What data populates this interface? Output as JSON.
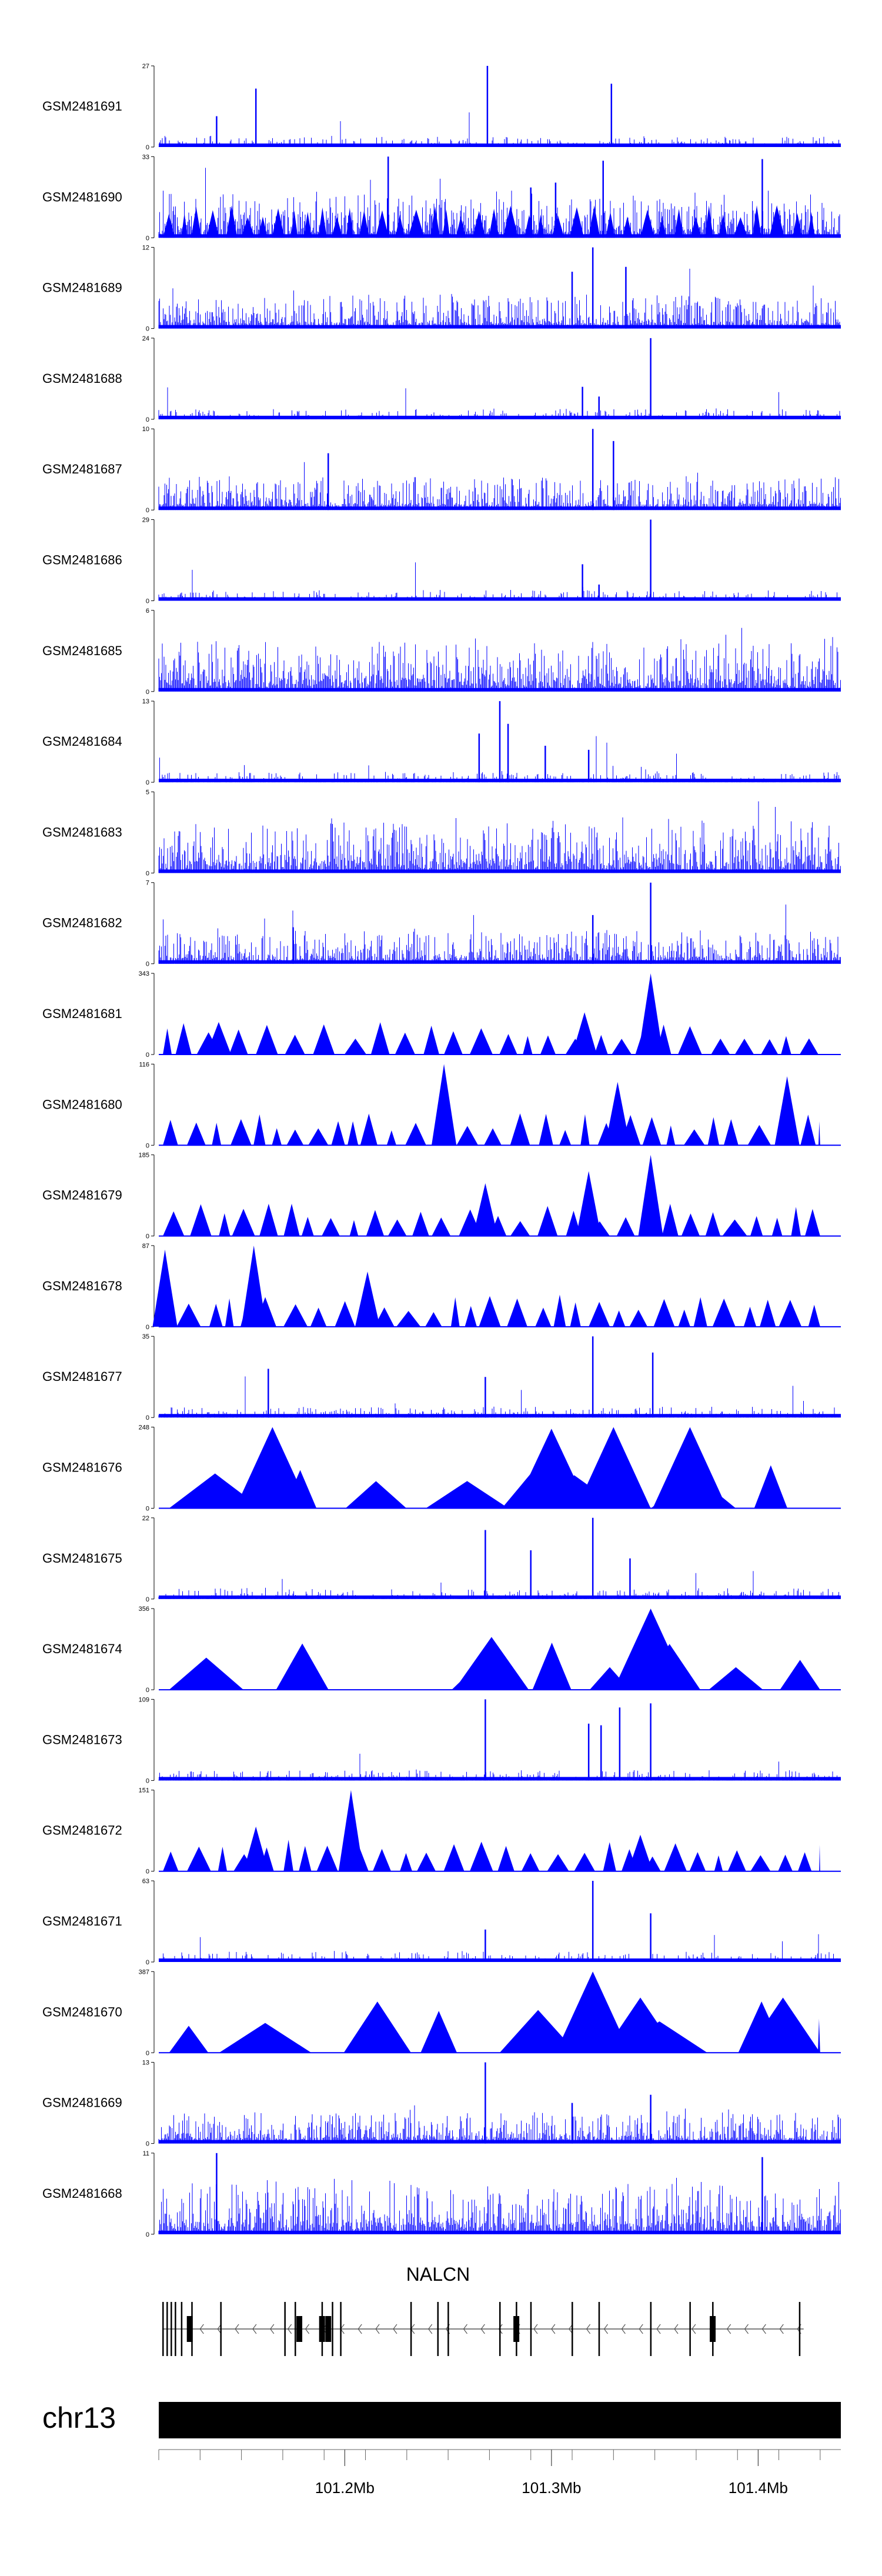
{
  "colors": {
    "signal": "#0000ff",
    "axis": "#000000",
    "background": "#ffffff"
  },
  "chart_data": {
    "type": "area",
    "title": "",
    "chromosome": "chr13",
    "xlim": [
      101.11,
      101.44
    ],
    "xlabel": "",
    "x_ticks": [
      {
        "value": 101.2,
        "label": "101.2Mb"
      },
      {
        "value": 101.3,
        "label": "101.3Mb"
      },
      {
        "value": 101.4,
        "label": "101.4Mb"
      }
    ],
    "gene": {
      "name": "NALCN",
      "strand": "-",
      "exons": [
        101.112,
        101.114,
        101.116,
        101.118,
        101.121,
        101.126,
        101.14,
        101.171,
        101.176,
        101.189,
        101.194,
        101.198,
        101.232,
        101.245,
        101.25,
        101.275,
        101.283,
        101.29,
        101.31,
        101.323,
        101.348,
        101.367,
        101.378,
        101.42
      ],
      "thick_exons": [
        101.125,
        101.178,
        101.189,
        101.192,
        101.283,
        101.378
      ]
    },
    "tracks": [
      {
        "name": "GSM2481691",
        "ymax": "27",
        "style": "sparse-spikes",
        "peaks": [
          {
            "x": 101.138,
            "h": 0.38
          },
          {
            "x": 101.157,
            "h": 0.72
          },
          {
            "x": 101.269,
            "h": 1.0
          },
          {
            "x": 101.329,
            "h": 0.78
          }
        ]
      },
      {
        "name": "GSM2481690",
        "ymax": "33",
        "style": "dense-triangles",
        "peaks": [
          {
            "x": 101.221,
            "h": 1.0
          },
          {
            "x": 101.29,
            "h": 0.62
          },
          {
            "x": 101.302,
            "h": 0.68
          },
          {
            "x": 101.325,
            "h": 0.95
          },
          {
            "x": 101.402,
            "h": 0.97
          }
        ]
      },
      {
        "name": "GSM2481689",
        "ymax": "12",
        "style": "dense",
        "peaks": [
          {
            "x": 101.32,
            "h": 1.0
          },
          {
            "x": 101.31,
            "h": 0.7
          },
          {
            "x": 101.336,
            "h": 0.76
          }
        ]
      },
      {
        "name": "GSM2481688",
        "ymax": "24",
        "style": "sparse-spikes",
        "peaks": [
          {
            "x": 101.315,
            "h": 0.4
          },
          {
            "x": 101.323,
            "h": 0.28
          },
          {
            "x": 101.348,
            "h": 1.0
          }
        ]
      },
      {
        "name": "GSM2481687",
        "ymax": "10",
        "style": "dense",
        "peaks": [
          {
            "x": 101.32,
            "h": 1.0
          },
          {
            "x": 101.33,
            "h": 0.85
          },
          {
            "x": 101.192,
            "h": 0.7
          }
        ]
      },
      {
        "name": "GSM2481686",
        "ymax": "29",
        "style": "sparse-spikes",
        "peaks": [
          {
            "x": 101.315,
            "h": 0.45
          },
          {
            "x": 101.348,
            "h": 1.0
          },
          {
            "x": 101.323,
            "h": 0.2
          }
        ]
      },
      {
        "name": "GSM2481685",
        "ymax": "6",
        "style": "dense-uniform",
        "peaks": []
      },
      {
        "name": "GSM2481684",
        "ymax": "13",
        "style": "sparse-spikes",
        "peaks": [
          {
            "x": 101.265,
            "h": 0.6
          },
          {
            "x": 101.275,
            "h": 1.0
          },
          {
            "x": 101.279,
            "h": 0.72
          },
          {
            "x": 101.297,
            "h": 0.45
          },
          {
            "x": 101.318,
            "h": 0.4
          }
        ]
      },
      {
        "name": "GSM2481683",
        "ymax": "5",
        "style": "dense-uniform",
        "peaks": []
      },
      {
        "name": "GSM2481682",
        "ymax": "7",
        "style": "dense",
        "peaks": [
          {
            "x": 101.348,
            "h": 1.0
          },
          {
            "x": 101.32,
            "h": 0.6
          },
          {
            "x": 101.175,
            "h": 0.45
          }
        ]
      },
      {
        "name": "GSM2481681",
        "ymax": "343",
        "style": "triangles",
        "peaks": [
          {
            "x": 101.348,
            "h": 1.0
          },
          {
            "x": 101.316,
            "h": 0.52
          },
          {
            "x": 101.139,
            "h": 0.4
          }
        ]
      },
      {
        "name": "GSM2481680",
        "ymax": "116",
        "style": "triangles",
        "peaks": [
          {
            "x": 101.248,
            "h": 1.0
          },
          {
            "x": 101.332,
            "h": 0.78
          },
          {
            "x": 101.414,
            "h": 0.85
          }
        ]
      },
      {
        "name": "GSM2481679",
        "ymax": "185",
        "style": "triangles",
        "peaks": [
          {
            "x": 101.348,
            "h": 1.0
          },
          {
            "x": 101.318,
            "h": 0.8
          },
          {
            "x": 101.268,
            "h": 0.65
          }
        ]
      },
      {
        "name": "GSM2481678",
        "ymax": "87",
        "style": "triangles",
        "peaks": [
          {
            "x": 101.113,
            "h": 0.95
          },
          {
            "x": 101.156,
            "h": 1.0
          },
          {
            "x": 101.211,
            "h": 0.68
          }
        ]
      },
      {
        "name": "GSM2481677",
        "ymax": "35",
        "style": "sparse-spikes",
        "peaks": [
          {
            "x": 101.32,
            "h": 1.0
          },
          {
            "x": 101.349,
            "h": 0.8
          },
          {
            "x": 101.163,
            "h": 0.6
          },
          {
            "x": 101.268,
            "h": 0.5
          }
        ]
      },
      {
        "name": "GSM2481676",
        "ymax": "248",
        "style": "triangles-wide",
        "peaks": [
          {
            "x": 101.165,
            "h": 1.0
          },
          {
            "x": 101.294,
            "h": 0.55
          },
          {
            "x": 101.3,
            "h": 0.98
          },
          {
            "x": 101.33,
            "h": 1.0
          },
          {
            "x": 101.367,
            "h": 1.0
          }
        ]
      },
      {
        "name": "GSM2481675",
        "ymax": "22",
        "style": "sparse-spikes",
        "peaks": [
          {
            "x": 101.268,
            "h": 0.85
          },
          {
            "x": 101.32,
            "h": 1.0
          },
          {
            "x": 101.29,
            "h": 0.6
          },
          {
            "x": 101.338,
            "h": 0.5
          }
        ]
      },
      {
        "name": "GSM2481674",
        "ymax": "356",
        "style": "triangles-wide",
        "peaks": [
          {
            "x": 101.271,
            "h": 0.65
          },
          {
            "x": 101.348,
            "h": 1.0
          }
        ]
      },
      {
        "name": "GSM2481673",
        "ymax": "109",
        "style": "sparse-spikes",
        "peaks": [
          {
            "x": 101.268,
            "h": 1.0
          },
          {
            "x": 101.318,
            "h": 0.7
          },
          {
            "x": 101.324,
            "h": 0.68
          },
          {
            "x": 101.333,
            "h": 0.9
          },
          {
            "x": 101.348,
            "h": 0.95
          }
        ]
      },
      {
        "name": "GSM2481672",
        "ymax": "151",
        "style": "triangles",
        "peaks": [
          {
            "x": 101.203,
            "h": 1.0
          },
          {
            "x": 101.157,
            "h": 0.55
          },
          {
            "x": 101.343,
            "h": 0.45
          }
        ]
      },
      {
        "name": "GSM2481671",
        "ymax": "63",
        "style": "sparse-spikes",
        "peaks": [
          {
            "x": 101.32,
            "h": 1.0
          },
          {
            "x": 101.348,
            "h": 0.6
          },
          {
            "x": 101.268,
            "h": 0.4
          }
        ]
      },
      {
        "name": "GSM2481670",
        "ymax": "387",
        "style": "triangles-wide",
        "peaks": [
          {
            "x": 101.32,
            "h": 1.0
          },
          {
            "x": 101.343,
            "h": 0.68
          },
          {
            "x": 101.412,
            "h": 0.68
          }
        ]
      },
      {
        "name": "GSM2481669",
        "ymax": "13",
        "style": "dense",
        "peaks": [
          {
            "x": 101.268,
            "h": 1.0
          },
          {
            "x": 101.348,
            "h": 0.6
          },
          {
            "x": 101.31,
            "h": 0.5
          }
        ]
      },
      {
        "name": "GSM2481668",
        "ymax": "11",
        "style": "dense-uniform",
        "peaks": [
          {
            "x": 101.138,
            "h": 1.0
          },
          {
            "x": 101.402,
            "h": 0.95
          }
        ]
      }
    ]
  }
}
